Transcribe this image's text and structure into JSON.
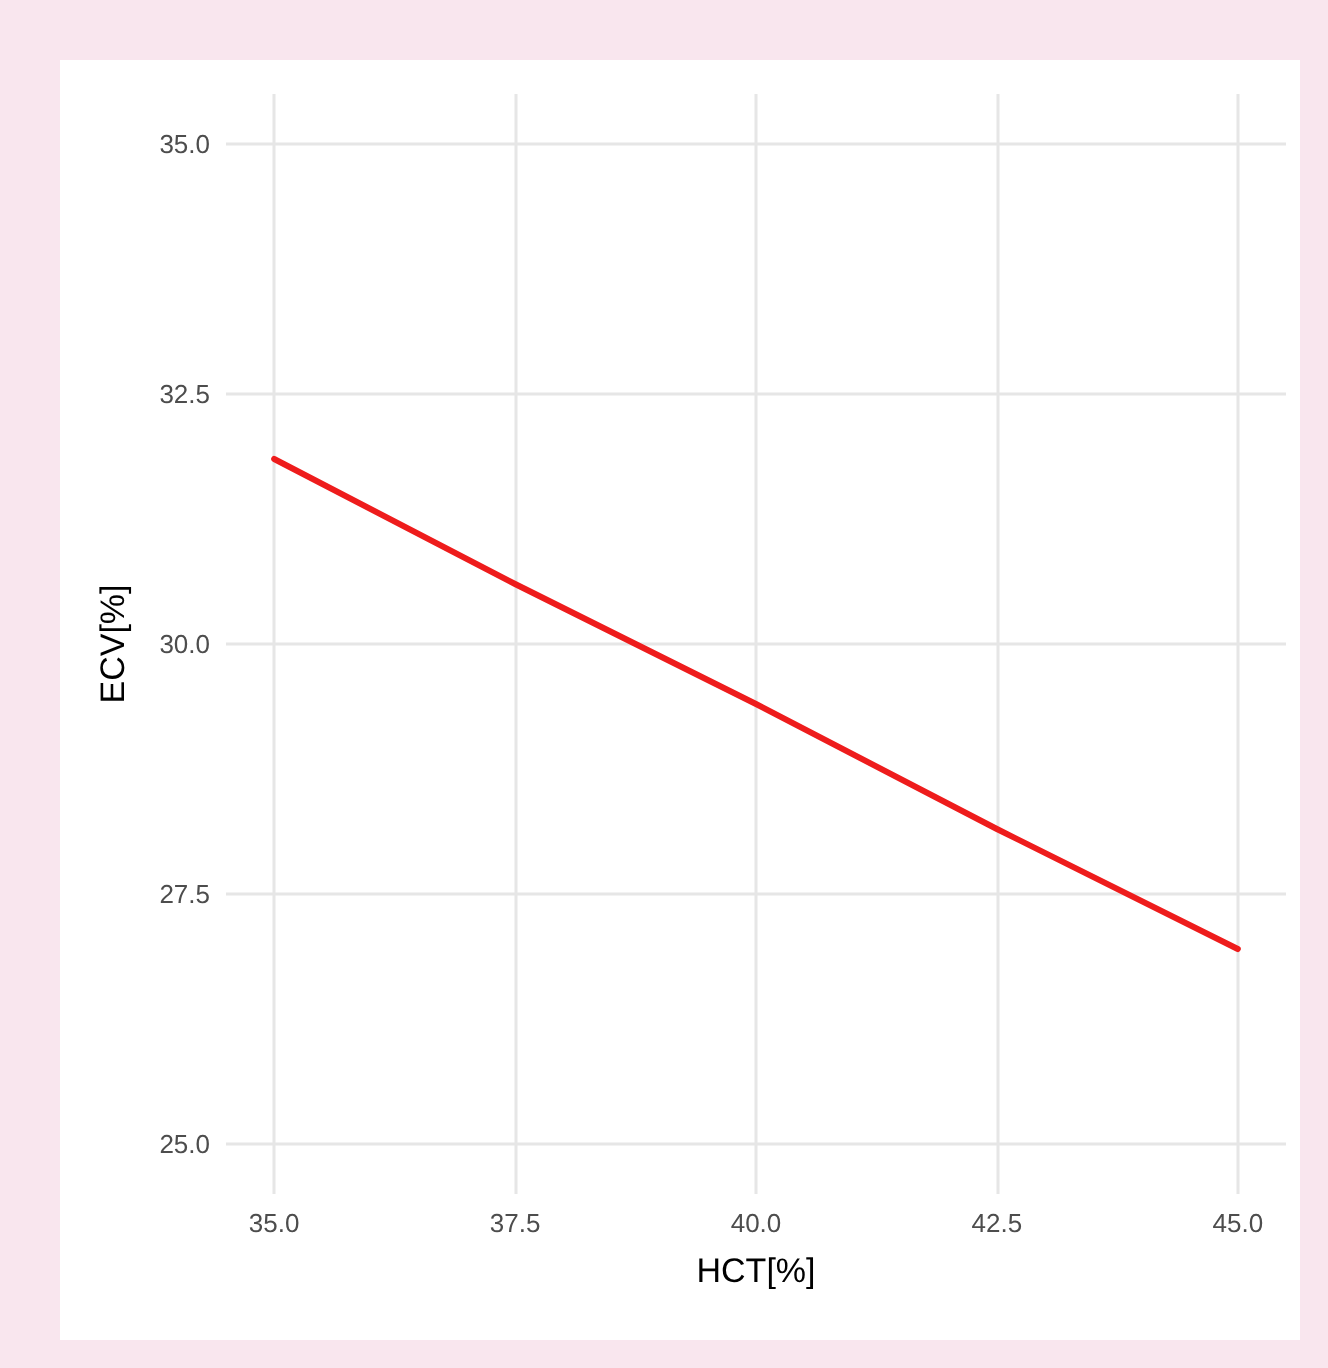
{
  "chart_data": {
    "type": "line",
    "xlabel": "HCT[%]",
    "ylabel": "ECV[%]",
    "x": [
      35,
      37.5,
      40,
      42.5,
      45
    ],
    "series": [
      {
        "color": "#ee1c1c",
        "values": [
          31.85,
          30.6,
          29.4,
          28.15,
          26.95
        ]
      }
    ],
    "xlim": [
      34.5,
      45.5
    ],
    "xticks": [
      {
        "value": 35,
        "label": "35.0"
      },
      {
        "value": 37.5,
        "label": "37.5"
      },
      {
        "value": 40,
        "label": "40.0"
      },
      {
        "value": 42.5,
        "label": "42.5"
      },
      {
        "value": 45,
        "label": "45.0"
      }
    ],
    "ylim": [
      24.5,
      35.5
    ],
    "yticks": [
      {
        "value": 25,
        "label": "25.0"
      },
      {
        "value": 27.5,
        "label": "27.5"
      },
      {
        "value": 30,
        "label": "30.0"
      },
      {
        "value": 32.5,
        "label": "32.5"
      },
      {
        "value": 35,
        "label": "35.0"
      }
    ],
    "grid": true,
    "marker": "none",
    "line_style": "solid"
  }
}
